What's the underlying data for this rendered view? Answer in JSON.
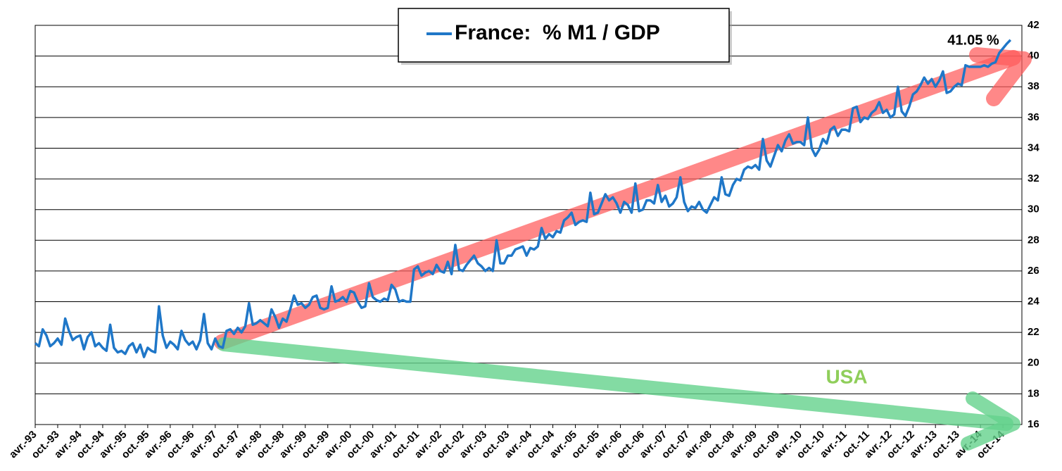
{
  "chart_data": {
    "type": "line",
    "categories": [
      "avr.-93",
      null,
      null,
      null,
      null,
      null,
      "oct.-93",
      null,
      null,
      null,
      null,
      null,
      "avr.-94",
      null,
      null,
      null,
      null,
      null,
      "oct.-94",
      null,
      null,
      null,
      null,
      null,
      "avr.-95",
      null,
      null,
      null,
      null,
      null,
      "oct.-95",
      null,
      null,
      null,
      null,
      null,
      "avr.-96",
      null,
      null,
      null,
      null,
      null,
      "oct.-96",
      null,
      null,
      null,
      null,
      null,
      "avr.-97",
      null,
      null,
      null,
      null,
      null,
      "oct.-97",
      null,
      null,
      null,
      null,
      null,
      "avr.-98",
      null,
      null,
      null,
      null,
      null,
      "oct.-98",
      null,
      null,
      null,
      null,
      null,
      "avr.-99",
      null,
      null,
      null,
      null,
      null,
      "oct.-99",
      null,
      null,
      null,
      null,
      null,
      "avr.-00",
      null,
      null,
      null,
      null,
      null,
      "oct.-00",
      null,
      null,
      null,
      null,
      null,
      "avr.-01",
      null,
      null,
      null,
      null,
      null,
      "oct.-01",
      null,
      null,
      null,
      null,
      null,
      "avr.-02",
      null,
      null,
      null,
      null,
      null,
      "oct.-02",
      null,
      null,
      null,
      null,
      null,
      "avr.-03",
      null,
      null,
      null,
      null,
      null,
      "oct.-03",
      null,
      null,
      null,
      null,
      null,
      "avr.-04",
      null,
      null,
      null,
      null,
      null,
      "oct.-04",
      null,
      null,
      null,
      null,
      null,
      "avr.-05",
      null,
      null,
      null,
      null,
      null,
      "oct.-05",
      null,
      null,
      null,
      null,
      null,
      "avr.-06",
      null,
      null,
      null,
      null,
      null,
      "oct.-06",
      null,
      null,
      null,
      null,
      null,
      "avr.-07",
      null,
      null,
      null,
      null,
      null,
      "oct.-07",
      null,
      null,
      null,
      null,
      null,
      "avr.-08",
      null,
      null,
      null,
      null,
      null,
      "oct.-08",
      null,
      null,
      null,
      null,
      null,
      "avr.-09",
      null,
      null,
      null,
      null,
      null,
      "oct.-09",
      null,
      null,
      null,
      null,
      null,
      "avr.-10",
      null,
      null,
      null,
      null,
      null,
      "oct.-10",
      null,
      null,
      null,
      null,
      null,
      "avr.-11",
      null,
      null,
      null,
      null,
      null,
      "oct.-11",
      null,
      null,
      null,
      null,
      null,
      "avr.-12",
      null,
      null,
      null,
      null,
      null,
      "oct.-12",
      null,
      null,
      null,
      null,
      null,
      "avr.-13",
      null,
      null,
      null,
      null,
      null,
      "oct.-13",
      null,
      null,
      null,
      null,
      null,
      "avr.-14",
      null,
      null,
      null,
      null,
      null,
      "oct.-14",
      null,
      null
    ],
    "series": [
      {
        "name": "France:  % M1 / GDP",
        "color": "#1f77c8",
        "values": [
          21.3,
          21.1,
          22.2,
          21.8,
          21.1,
          21.3,
          21.6,
          21.2,
          22.9,
          22.1,
          21.5,
          21.7,
          21.8,
          20.9,
          21.7,
          22.0,
          21.1,
          21.3,
          21.0,
          20.8,
          22.5,
          21.0,
          20.7,
          20.8,
          20.6,
          21.1,
          21.3,
          20.7,
          21.2,
          20.4,
          21.0,
          20.8,
          20.7,
          23.7,
          21.8,
          21.0,
          21.4,
          21.2,
          20.9,
          22.1,
          21.5,
          21.2,
          21.4,
          20.9,
          21.5,
          23.2,
          21.3,
          20.9,
          21.6,
          21.1,
          21.0,
          22.1,
          22.2,
          21.9,
          22.3,
          22.0,
          22.4,
          23.9,
          22.5,
          22.6,
          22.8,
          22.6,
          22.4,
          23.5,
          23.0,
          22.3,
          22.9,
          22.7,
          23.5,
          24.4,
          23.8,
          23.9,
          23.6,
          23.8,
          24.3,
          24.4,
          23.6,
          23.5,
          23.6,
          25.0,
          24.0,
          24.1,
          24.3,
          24.0,
          24.7,
          24.6,
          24.0,
          23.6,
          23.7,
          25.2,
          24.3,
          24.1,
          24.0,
          24.2,
          24.1,
          25.1,
          24.8,
          24.0,
          24.1,
          24.0,
          24.0,
          26.1,
          26.3,
          25.7,
          25.9,
          26.0,
          25.8,
          26.4,
          26.0,
          25.9,
          26.6,
          25.8,
          27.7,
          26.1,
          26.0,
          26.4,
          26.7,
          27.0,
          26.5,
          26.3,
          26.0,
          26.2,
          26.0,
          28.0,
          26.5,
          26.5,
          27.0,
          27.0,
          27.4,
          27.5,
          27.6,
          27.0,
          27.5,
          27.4,
          27.6,
          28.8,
          28.1,
          28.4,
          28.2,
          28.6,
          28.5,
          29.3,
          29.5,
          29.8,
          29.0,
          29.2,
          29.3,
          29.2,
          31.1,
          29.7,
          29.8,
          30.4,
          31.0,
          30.6,
          30.8,
          30.4,
          29.8,
          30.5,
          30.3,
          29.8,
          31.7,
          29.9,
          30.0,
          30.6,
          30.6,
          30.4,
          31.6,
          30.5,
          30.9,
          30.2,
          30.4,
          30.8,
          32.1,
          30.5,
          29.9,
          30.2,
          30.1,
          30.5,
          30.0,
          29.8,
          30.3,
          30.8,
          30.6,
          32.1,
          31.0,
          30.9,
          31.6,
          32.0,
          31.9,
          32.6,
          32.8,
          32.7,
          32.9,
          32.6,
          34.6,
          33.2,
          32.8,
          33.5,
          34.2,
          33.8,
          34.5,
          34.9,
          34.3,
          34.4,
          34.4,
          34.2,
          36.0,
          34.0,
          33.5,
          33.9,
          34.6,
          34.3,
          35.2,
          35.4,
          34.8,
          35.2,
          35.2,
          35.1,
          36.6,
          36.7,
          35.7,
          36.0,
          35.9,
          36.3,
          36.5,
          37.0,
          36.3,
          36.5,
          36.0,
          36.2,
          38.0,
          36.4,
          36.1,
          36.7,
          37.5,
          37.7,
          38.1,
          38.6,
          38.2,
          38.5,
          38.0,
          38.4,
          39.0,
          37.6,
          37.7,
          38.0,
          38.2,
          38.1,
          39.4,
          39.3,
          39.3,
          39.3,
          39.3,
          39.4,
          39.3,
          39.5,
          39.6,
          40.2,
          40.5,
          40.8,
          41.05
        ]
      }
    ],
    "value_labels": [
      "41.05 %"
    ],
    "annotations": [
      "USA"
    ],
    "ylim": [
      16,
      42
    ],
    "yticks": [
      16,
      18,
      20,
      22,
      24,
      26,
      28,
      30,
      32,
      34,
      36,
      38,
      40,
      42
    ],
    "grid": true,
    "y_axis_side": "right"
  }
}
